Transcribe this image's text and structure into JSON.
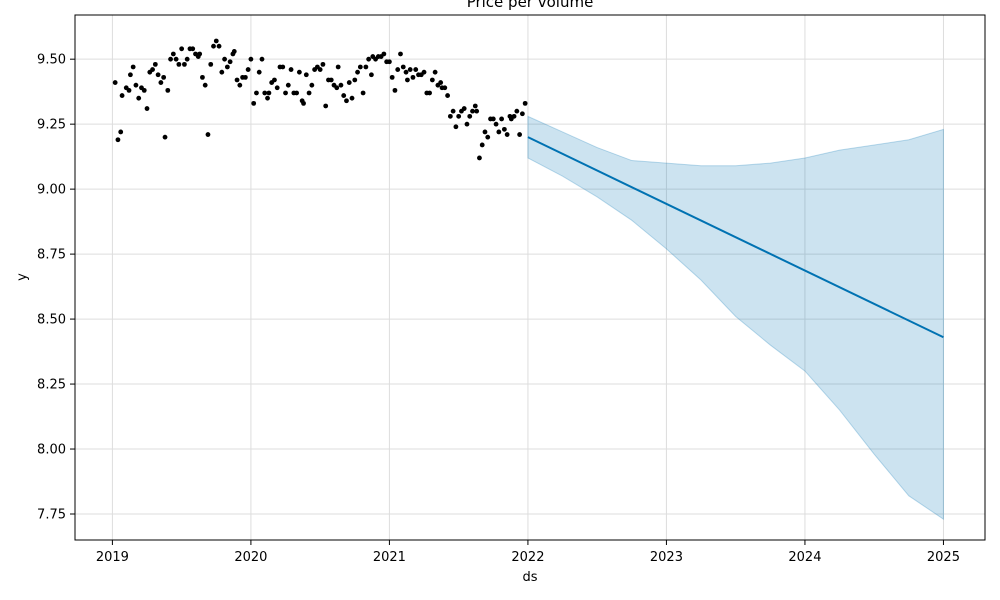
{
  "chart_data": {
    "type": "scatter",
    "title": "Price per volume",
    "xlabel": "ds",
    "ylabel": "y",
    "xlim": [
      2018.73,
      2025.3
    ],
    "ylim": [
      7.65,
      9.67
    ],
    "x_ticks": [
      "2019",
      "2020",
      "2021",
      "2022",
      "2023",
      "2024",
      "2025"
    ],
    "x_tick_values": [
      2019,
      2020,
      2021,
      2022,
      2023,
      2024,
      2025
    ],
    "y_ticks": [
      "7.75",
      "8.00",
      "8.25",
      "8.50",
      "8.75",
      "9.00",
      "9.25",
      "9.50"
    ],
    "y_tick_values": [
      7.75,
      8.0,
      8.25,
      8.5,
      8.75,
      9.0,
      9.25,
      9.5
    ],
    "grid": true,
    "colors": {
      "observed": "#000000",
      "forecast": "#0072B2",
      "interval": "#0072B2"
    },
    "observed": {
      "x": [
        2019.02,
        2019.04,
        2019.06,
        2019.07,
        2019.1,
        2019.12,
        2019.13,
        2019.15,
        2019.17,
        2019.19,
        2019.21,
        2019.23,
        2019.25,
        2019.27,
        2019.29,
        2019.31,
        2019.33,
        2019.35,
        2019.37,
        2019.38,
        2019.4,
        2019.42,
        2019.44,
        2019.46,
        2019.48,
        2019.5,
        2019.52,
        2019.54,
        2019.56,
        2019.58,
        2019.6,
        2019.62,
        2019.63,
        2019.65,
        2019.67,
        2019.69,
        2019.71,
        2019.73,
        2019.75,
        2019.77,
        2019.79,
        2019.81,
        2019.83,
        2019.85,
        2019.87,
        2019.88,
        2019.9,
        2019.92,
        2019.94,
        2019.96,
        2019.98,
        2020.0,
        2020.02,
        2020.04,
        2020.06,
        2020.08,
        2020.1,
        2020.12,
        2020.13,
        2020.15,
        2020.17,
        2020.19,
        2020.21,
        2020.23,
        2020.25,
        2020.27,
        2020.29,
        2020.31,
        2020.33,
        2020.35,
        2020.37,
        2020.38,
        2020.4,
        2020.42,
        2020.44,
        2020.46,
        2020.48,
        2020.5,
        2020.52,
        2020.54,
        2020.56,
        2020.58,
        2020.6,
        2020.62,
        2020.63,
        2020.65,
        2020.67,
        2020.69,
        2020.71,
        2020.73,
        2020.75,
        2020.77,
        2020.79,
        2020.81,
        2020.83,
        2020.85,
        2020.87,
        2020.88,
        2020.9,
        2020.92,
        2020.94,
        2020.96,
        2020.98,
        2021.0,
        2021.02,
        2021.04,
        2021.06,
        2021.08,
        2021.1,
        2021.12,
        2021.13,
        2021.15,
        2021.17,
        2021.19,
        2021.21,
        2021.23,
        2021.25,
        2021.27,
        2021.29,
        2021.31,
        2021.33,
        2021.35,
        2021.37,
        2021.38,
        2021.4,
        2021.42,
        2021.44,
        2021.46,
        2021.48,
        2021.5,
        2021.52,
        2021.54,
        2021.56,
        2021.58,
        2021.6,
        2021.62,
        2021.63,
        2021.65,
        2021.67,
        2021.69,
        2021.71,
        2021.73,
        2021.75,
        2021.77,
        2021.79,
        2021.81,
        2021.83,
        2021.85,
        2021.87,
        2021.88,
        2021.9,
        2021.92,
        2021.94,
        2021.96,
        2021.98
      ],
      "y": [
        9.41,
        9.19,
        9.22,
        9.36,
        9.39,
        9.38,
        9.44,
        9.47,
        9.4,
        9.35,
        9.39,
        9.38,
        9.31,
        9.45,
        9.46,
        9.48,
        9.44,
        9.41,
        9.43,
        9.2,
        9.38,
        9.5,
        9.52,
        9.5,
        9.48,
        9.54,
        9.48,
        9.5,
        9.54,
        9.54,
        9.52,
        9.51,
        9.52,
        9.43,
        9.4,
        9.21,
        9.48,
        9.55,
        9.57,
        9.55,
        9.45,
        9.5,
        9.47,
        9.49,
        9.52,
        9.53,
        9.42,
        9.4,
        9.43,
        9.43,
        9.46,
        9.5,
        9.33,
        9.37,
        9.45,
        9.5,
        9.37,
        9.35,
        9.37,
        9.41,
        9.42,
        9.39,
        9.47,
        9.47,
        9.37,
        9.4,
        9.46,
        9.37,
        9.37,
        9.45,
        9.34,
        9.33,
        9.44,
        9.37,
        9.4,
        9.46,
        9.47,
        9.46,
        9.48,
        9.32,
        9.42,
        9.42,
        9.4,
        9.39,
        9.47,
        9.4,
        9.36,
        9.34,
        9.41,
        9.35,
        9.42,
        9.45,
        9.47,
        9.37,
        9.47,
        9.5,
        9.44,
        9.51,
        9.5,
        9.51,
        9.51,
        9.52,
        9.49,
        9.49,
        9.43,
        9.38,
        9.46,
        9.52,
        9.47,
        9.45,
        9.42,
        9.46,
        9.43,
        9.46,
        9.44,
        9.44,
        9.45,
        9.37,
        9.37,
        9.42,
        9.45,
        9.4,
        9.41,
        9.39,
        9.39,
        9.36,
        9.28,
        9.3,
        9.24,
        9.28,
        9.3,
        9.31,
        9.25,
        9.28,
        9.3,
        9.32,
        9.3,
        9.12,
        9.17,
        9.22,
        9.2,
        9.27,
        9.27,
        9.25,
        9.22,
        9.27,
        9.23,
        9.21,
        9.28,
        9.27,
        9.28,
        9.3,
        9.21,
        9.29,
        9.33
      ]
    },
    "forecast": {
      "x": [
        2022.0,
        2025.0
      ],
      "y": [
        9.2,
        8.43
      ]
    },
    "interval": {
      "x": [
        2022.0,
        2022.25,
        2022.5,
        2022.75,
        2023.0,
        2023.25,
        2023.5,
        2023.75,
        2024.0,
        2024.25,
        2024.5,
        2024.75,
        2025.0
      ],
      "upper": [
        9.28,
        9.22,
        9.16,
        9.11,
        9.1,
        9.09,
        9.09,
        9.1,
        9.12,
        9.15,
        9.17,
        9.19,
        9.23
      ],
      "lower": [
        9.12,
        9.05,
        8.97,
        8.88,
        8.77,
        8.65,
        8.51,
        8.4,
        8.3,
        8.15,
        7.98,
        7.82,
        7.73
      ]
    }
  }
}
